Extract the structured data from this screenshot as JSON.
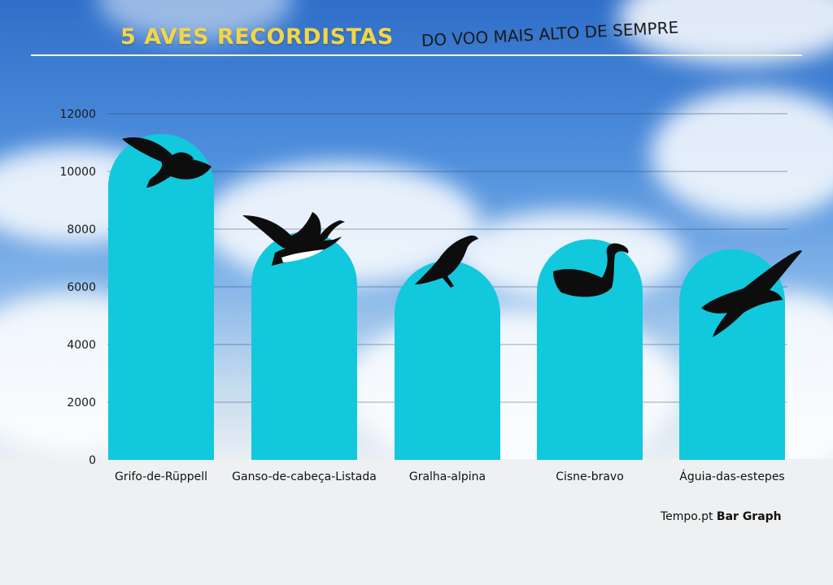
{
  "title": "5 AVES RECORDISTAS",
  "subtitle": "DO VOO MAIS ALTO DE SEMPRE",
  "footer": {
    "source": "Tempo.pt",
    "brand": "Bar Graph"
  },
  "colors": {
    "bar": "#12c8dc",
    "title": "#f2d648",
    "silhouette": "#0d0d0d"
  },
  "chart_data": {
    "type": "bar",
    "categories": [
      "Grifo-de-Rüppell",
      "Ganso-de-cabeça-Listada",
      "Gralha-alpina",
      "Cisne-bravo",
      "Águia-das-estepes"
    ],
    "values": [
      11300,
      7900,
      6900,
      7650,
      7300
    ],
    "yticks": [
      0,
      2000,
      4000,
      6000,
      8000,
      10000,
      12000
    ],
    "ylim": [
      0,
      12000
    ],
    "grid": true,
    "icons": [
      "vulture-icon",
      "goose-icon",
      "chough-icon",
      "swan-icon",
      "eagle-icon"
    ]
  }
}
